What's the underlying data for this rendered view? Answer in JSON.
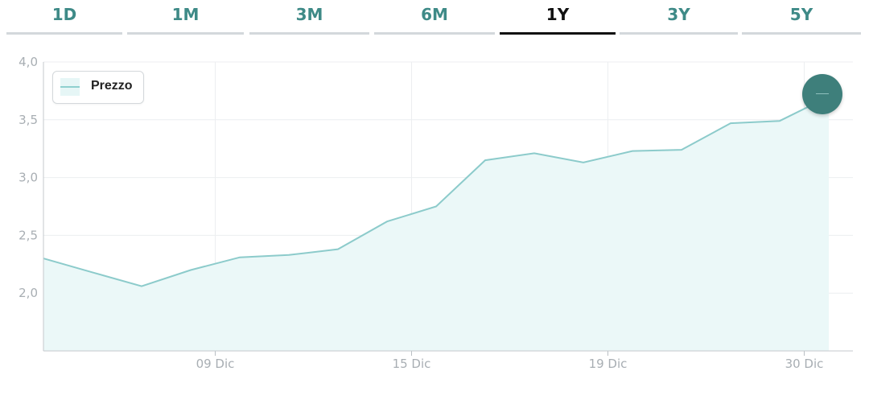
{
  "tabs": [
    {
      "label": "1D",
      "active": false
    },
    {
      "label": "1M",
      "active": false
    },
    {
      "label": "3M",
      "active": false
    },
    {
      "label": "6M",
      "active": false
    },
    {
      "label": "1Y",
      "active": true
    },
    {
      "label": "3Y",
      "active": false
    },
    {
      "label": "5Y",
      "active": false
    }
  ],
  "legend": {
    "label": "Prezzo"
  },
  "chart_data": {
    "type": "area",
    "title": "",
    "xlabel": "",
    "ylabel": "",
    "ylim": [
      1.5,
      4.0
    ],
    "yticks": [
      "4,0",
      "3,5",
      "3,0",
      "2,5",
      "2,0"
    ],
    "ytick_values": [
      4.0,
      3.5,
      3.0,
      2.5,
      2.0
    ],
    "xticks": [
      "09 Dic",
      "15 Dic",
      "19 Dic",
      "30 Dic"
    ],
    "xtick_positions": [
      3.5,
      7.5,
      11.5,
      15.5
    ],
    "grid": true,
    "legend_position": "top-left",
    "series": [
      {
        "name": "Prezzo",
        "x": [
          0,
          1,
          2,
          3,
          4,
          5,
          6,
          7,
          8,
          9,
          10,
          11,
          12,
          13,
          14,
          15,
          16
        ],
        "values": [
          2.3,
          2.18,
          2.06,
          2.2,
          2.31,
          2.33,
          2.38,
          2.62,
          2.75,
          3.15,
          3.21,
          3.13,
          3.23,
          3.24,
          3.47,
          3.49,
          3.7
        ]
      }
    ],
    "colors": {
      "line": "#8ccbcb",
      "fill": "#ebf8f8",
      "marker": "#3e7f7b",
      "tab_text": "#3e8a87",
      "tab_active": "#111111"
    }
  }
}
